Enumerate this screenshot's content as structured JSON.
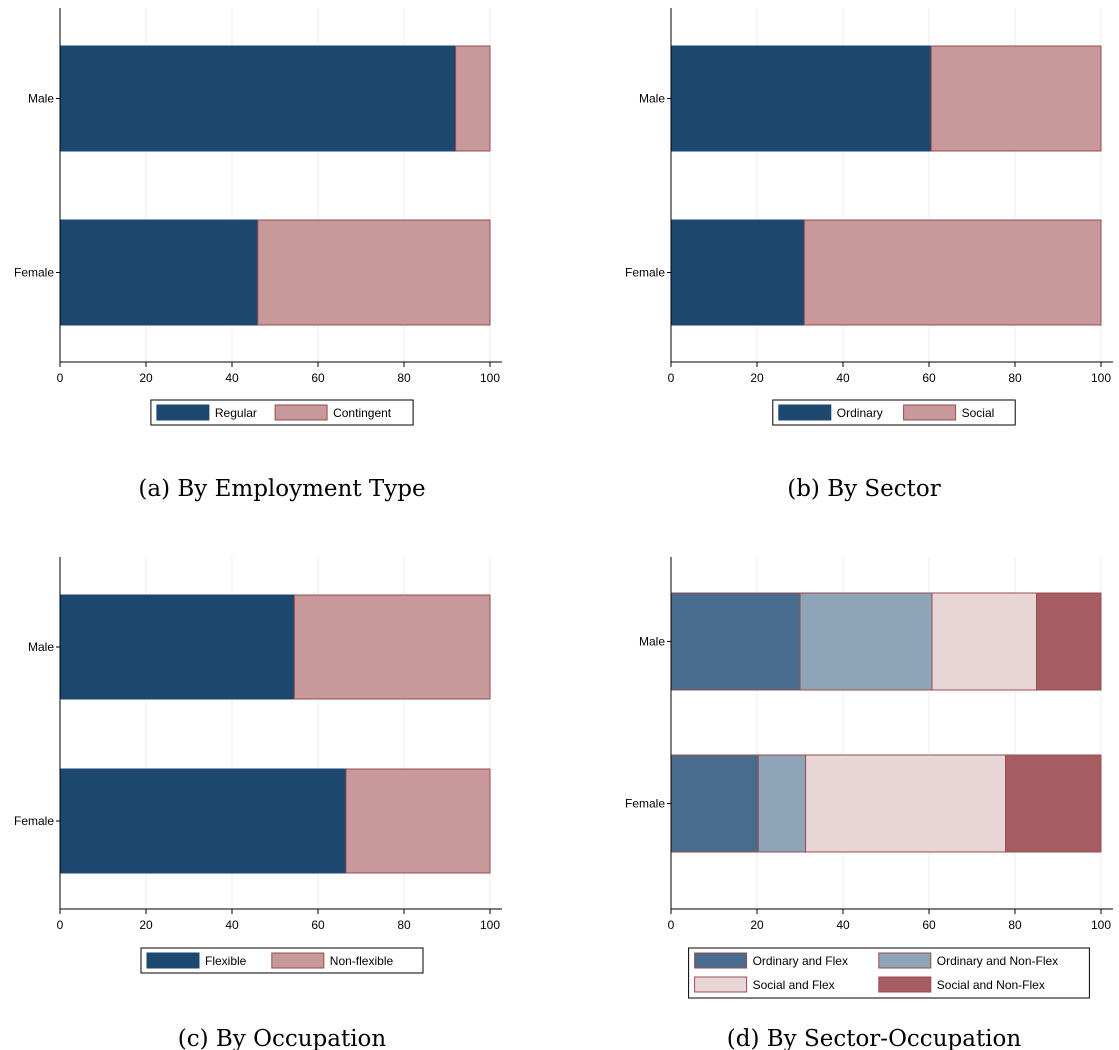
{
  "chart_data": [
    {
      "type": "bar",
      "orientation": "horizontal",
      "stacked": true,
      "caption": "(a) By Employment Type",
      "categories": [
        "Male",
        "Female"
      ],
      "xlim": [
        0,
        100
      ],
      "xticks": [
        "0",
        "20",
        "40",
        "60",
        "80",
        "100"
      ],
      "grid": true,
      "legend_position": "bottom",
      "series": [
        {
          "name": "Regular",
          "color": "#1c476f",
          "values": [
            92,
            46
          ]
        },
        {
          "name": "Contingent",
          "color": "#c8999b",
          "values": [
            8,
            54
          ]
        }
      ]
    },
    {
      "type": "bar",
      "orientation": "horizontal",
      "stacked": true,
      "caption": "(b) By Sector",
      "categories": [
        "Male",
        "Female"
      ],
      "xlim": [
        0,
        100
      ],
      "xticks": [
        "0",
        "20",
        "40",
        "60",
        "80",
        "100"
      ],
      "grid": true,
      "legend_position": "bottom",
      "series": [
        {
          "name": "Ordinary",
          "color": "#1c476f",
          "values": [
            60.5,
            31
          ]
        },
        {
          "name": "Social",
          "color": "#c8999b",
          "values": [
            39.5,
            69
          ]
        }
      ]
    },
    {
      "type": "bar",
      "orientation": "horizontal",
      "stacked": true,
      "caption": "(c) By Occupation",
      "categories": [
        "Male",
        "Female"
      ],
      "xlim": [
        0,
        100
      ],
      "xticks": [
        "0",
        "20",
        "40",
        "60",
        "80",
        "100"
      ],
      "grid": true,
      "legend_position": "bottom",
      "series": [
        {
          "name": "Flexible",
          "color": "#1c476f",
          "values": [
            54.5,
            66.5
          ]
        },
        {
          "name": "Non-flexible",
          "color": "#c8999b",
          "values": [
            45.5,
            33.5
          ]
        }
      ]
    },
    {
      "type": "bar",
      "orientation": "horizontal",
      "stacked": true,
      "caption": "(d) By Sector-Occupation",
      "categories": [
        "Male",
        "Female"
      ],
      "xlim": [
        0,
        100
      ],
      "xticks": [
        "0",
        "20",
        "40",
        "60",
        "80",
        "100"
      ],
      "grid": true,
      "legend_position": "bottom",
      "series": [
        {
          "name": "Ordinary and Flex",
          "color": "#476c8d",
          "values": [
            30,
            20.3
          ]
        },
        {
          "name": "Ordinary and Non-Flex",
          "color": "#8ea4b8",
          "values": [
            30.7,
            11
          ]
        },
        {
          "name": "Social and Flex",
          "color": "#e8d6d6",
          "values": [
            24.3,
            46.5
          ]
        },
        {
          "name": "Social and Non-Flex",
          "color": "#a55d62",
          "values": [
            15,
            22.2
          ]
        }
      ]
    }
  ]
}
